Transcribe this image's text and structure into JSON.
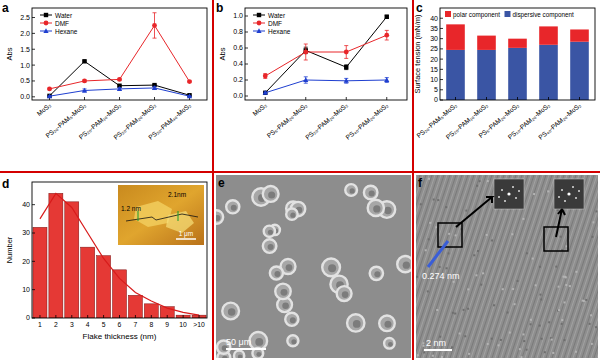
{
  "chart_data": [
    {
      "panel_label": "a",
      "type": "line",
      "y_label": "Abs",
      "categories": [
        "MoS₂",
        "PS₂₀-PAM₅-MoS₂",
        "PS₂₀-PAM₁₀-MoS₂",
        "PS₂₀-PAM₂₀-MoS₂",
        "PS₂₀-PAM₄₀-MoS₂"
      ],
      "series": [
        {
          "name": "Water",
          "color": "#000000",
          "marker": "square",
          "values": [
            0.03,
            1.12,
            0.35,
            0.37,
            0.05
          ],
          "errors": [
            0.01,
            0.02,
            0.02,
            0.02,
            0.01
          ]
        },
        {
          "name": "DMF",
          "color": "#e8262a",
          "marker": "circle",
          "values": [
            0.25,
            0.5,
            0.55,
            2.25,
            0.48
          ],
          "errors": [
            0.02,
            0.03,
            0.03,
            0.4,
            0.03
          ]
        },
        {
          "name": "Hexane",
          "color": "#1f3fd0",
          "marker": "triangle",
          "values": [
            0.02,
            0.2,
            0.25,
            0.28,
            0.02
          ],
          "errors": [
            0.01,
            0.05,
            0.04,
            0.05,
            0.01
          ]
        }
      ],
      "ylim": [
        -0.1,
        2.8
      ],
      "yticks": [
        {
          "value": 0,
          "label": "0.0"
        },
        0.5,
        {
          "value": 1,
          "label": "1.0"
        },
        1.5,
        {
          "value": 2,
          "label": "2.0"
        },
        2.5
      ],
      "legend": "upper left"
    },
    {
      "panel_label": "b",
      "type": "line",
      "y_label": "Abs",
      "categories": [
        "MoS₂",
        "PS₅-PAM₂₀-MoS₂",
        "PS₂₀-PAM₂₀-MoS₂",
        "PS₄₀-PAM₂₀-MoS₂"
      ],
      "series": [
        {
          "name": "Water",
          "color": "#000000",
          "marker": "square",
          "values": [
            0.04,
            0.57,
            0.36,
            0.99
          ],
          "errors": [
            0.01,
            0.04,
            0.03,
            0.02
          ]
        },
        {
          "name": "DMF",
          "color": "#e8262a",
          "marker": "circle",
          "values": [
            0.25,
            0.55,
            0.55,
            0.76
          ],
          "errors": [
            0.03,
            0.1,
            0.08,
            0.06
          ]
        },
        {
          "name": "Hexane",
          "color": "#1f3fd0",
          "marker": "triangle",
          "values": [
            0.04,
            0.2,
            0.19,
            0.2
          ],
          "errors": [
            0.01,
            0.04,
            0.03,
            0.03
          ]
        }
      ],
      "ylim": [
        -0.05,
        1.1
      ],
      "yticks": [
        {
          "value": 0,
          "label": "0.0"
        },
        0.2,
        0.4,
        0.6,
        0.8,
        {
          "value": 1,
          "label": "1.0"
        }
      ],
      "legend": "upper left"
    },
    {
      "panel_label": "c",
      "type": "bar",
      "stacked": true,
      "y_label": "Surface tension (mN/m)",
      "categories": [
        "PS₂₀-PAM₅-MoS₂",
        "PS₂₀-PAM₁₀-MoS₂",
        "PS₅-PAM₂₀-MoS₂",
        "PS₁₀-PAM₂₀-MoS₂",
        "PS₄₀-PAM₂₀-MoS₂"
      ],
      "series": [
        {
          "name": "dispersive component",
          "color": "#3a55a4",
          "values": [
            24.5,
            24.5,
            25.5,
            27,
            28.5
          ]
        },
        {
          "name": "polar component",
          "color": "#e8262a",
          "values": [
            12.5,
            7,
            4.5,
            9,
            6
          ]
        }
      ],
      "ylim": [
        0,
        45
      ],
      "yticks": [
        0,
        5,
        10,
        15,
        20,
        25,
        30,
        35,
        40
      ],
      "legend": "upper right"
    },
    {
      "panel_label": "d",
      "type": "bar",
      "x_label": "Flake thickness (nm)",
      "y_label": "Number",
      "categories": [
        "1",
        "2",
        "3",
        "4",
        "5",
        "6",
        "7",
        "8",
        "9",
        "10",
        ">10"
      ],
      "values": [
        32,
        44,
        41,
        25,
        22,
        17,
        8,
        5,
        4,
        1,
        1
      ],
      "color": "#e53935",
      "fit_values": [
        35,
        44,
        39,
        30,
        21,
        14,
        9,
        6,
        3.5,
        2,
        1
      ],
      "ylim": [
        0,
        48
      ],
      "yticks": [
        0,
        10,
        20,
        30,
        40
      ],
      "inset": {
        "annotations": [
          "2.1nm",
          "1.2 nm"
        ],
        "scale_bar": "1 μm"
      }
    }
  ],
  "images": [
    {
      "panel_label": "e",
      "scale_bar": "50 μm"
    },
    {
      "panel_label": "f",
      "scale_bar": "2 nm",
      "annotations": [
        "0.274 nm"
      ]
    }
  ]
}
